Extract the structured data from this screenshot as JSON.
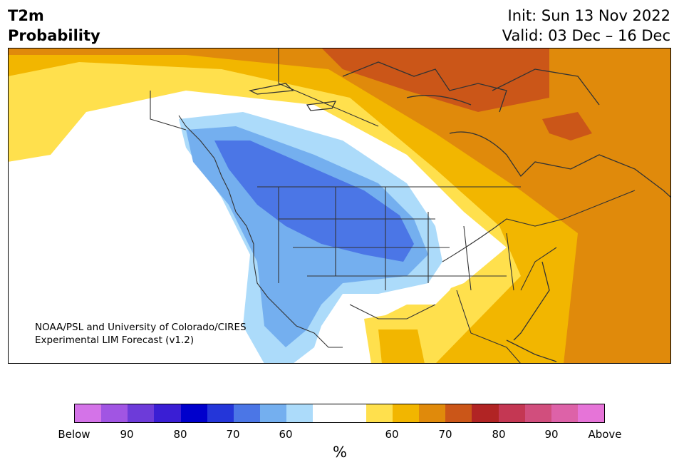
{
  "title": {
    "line1": "T2m",
    "line2": "Probability",
    "init": "Init: Sun 13 Nov 2022",
    "valid": "Valid: 03 Dec – 16 Dec"
  },
  "credit": {
    "line1": "NOAA/PSL and University of Colorado/CIRES",
    "line2": "Experimental LIM Forecast (v1.2)"
  },
  "colorbar": {
    "colors": [
      "#d473e8",
      "#a155e3",
      "#6d3bd9",
      "#3a1ed4",
      "#0000cc",
      "#2436d9",
      "#4b76e6",
      "#74afef",
      "#acdbfa",
      "#ffffff",
      "#ffffff",
      "#ffe04d",
      "#f2b600",
      "#e08a0b",
      "#cb5618",
      "#b12424",
      "#c43753",
      "#d14e7d",
      "#dd62a8",
      "#e674d8"
    ],
    "ticks": [
      "Below",
      "90",
      "80",
      "70",
      "60",
      "60",
      "70",
      "80",
      "90",
      "Above"
    ],
    "unit": "%"
  },
  "map_colors": {
    "land": "#ffffff",
    "water": "#ffffff",
    "borders": "#333333"
  }
}
